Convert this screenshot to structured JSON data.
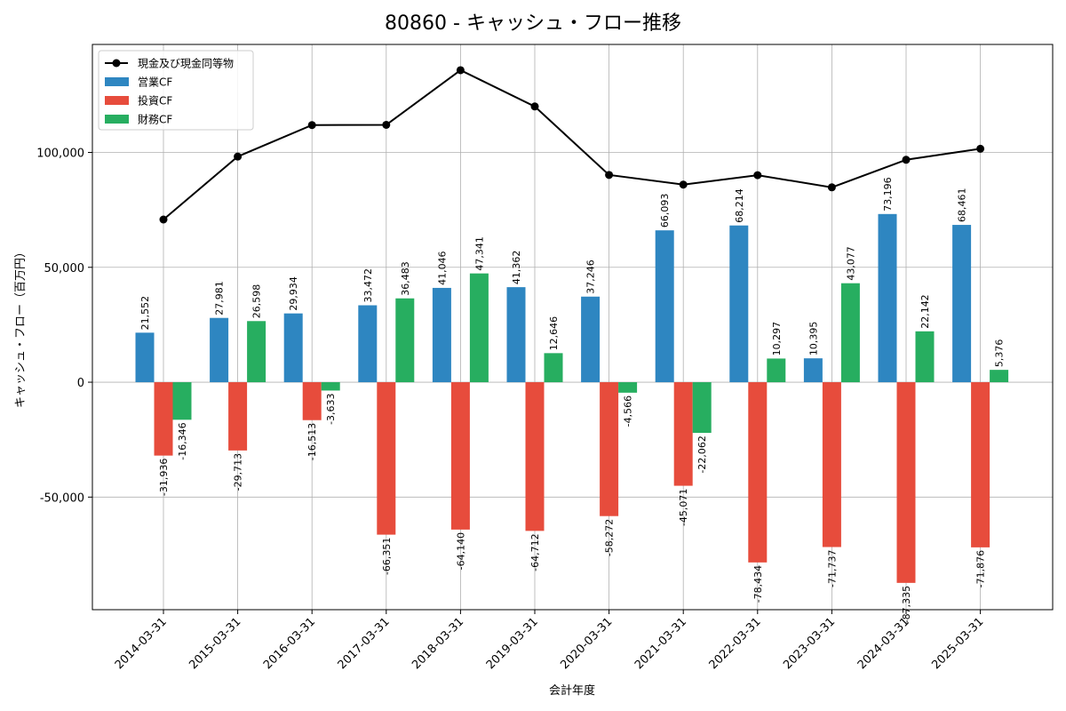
{
  "chart_data": {
    "type": "bar",
    "title": "80860 - キャッシュ・フロー推移",
    "xlabel": "会計年度",
    "ylabel": "キャッシュ・フロー（百万円）",
    "ylim": [
      -99000,
      147000
    ],
    "yticks": [
      -50000,
      0,
      50000,
      100000
    ],
    "ytick_labels": [
      "-50,000",
      "0",
      "50,000",
      "100,000"
    ],
    "grid": true,
    "legend_position": "top-left",
    "categories": [
      "2014-03-31",
      "2015-03-31",
      "2016-03-31",
      "2017-03-31",
      "2018-03-31",
      "2019-03-31",
      "2020-03-31",
      "2021-03-31",
      "2022-03-31",
      "2023-03-31",
      "2024-03-31",
      "2025-03-31"
    ],
    "series": [
      {
        "name": "営業CF",
        "kind": "bar",
        "color": "#2e86c1",
        "values": [
          21552,
          27981,
          29934,
          33472,
          41046,
          41362,
          37246,
          66093,
          68214,
          10395,
          73196,
          68461
        ],
        "labels": [
          "21,552",
          "27,981",
          "29,934",
          "33,472",
          "41,046",
          "41,362",
          "37,246",
          "66,093",
          "68,214",
          "10,395",
          "73,196",
          "68,461"
        ]
      },
      {
        "name": "投資CF",
        "kind": "bar",
        "color": "#e74c3c",
        "values": [
          -31936,
          -29713,
          -16513,
          -66351,
          -64140,
          -64712,
          -58272,
          -45071,
          -78434,
          -71737,
          -87335,
          -71876
        ],
        "labels": [
          "-31,936",
          "-29,713",
          "-16,513",
          "-66,351",
          "-64,140",
          "-64,712",
          "-58,272",
          "-45,071",
          "-78,434",
          "-71,737",
          "-87,335",
          "-71,876"
        ]
      },
      {
        "name": "財務CF",
        "kind": "bar",
        "color": "#27ae60",
        "values": [
          -16346,
          26598,
          -3633,
          36483,
          47341,
          12646,
          -4566,
          -22062,
          10297,
          43077,
          22142,
          5376
        ],
        "labels": [
          "-16,346",
          "26,598",
          "-3,633",
          "36,483",
          "47,341",
          "12,646",
          "-4,566",
          "-22,062",
          "10,297",
          "43,077",
          "22,142",
          "5,376"
        ]
      },
      {
        "name": "現金及び現金同等物",
        "kind": "line",
        "color": "#000000",
        "values": [
          70800,
          98200,
          111900,
          112000,
          135800,
          120000,
          90200,
          86000,
          90100,
          84800,
          96800,
          101600
        ]
      }
    ]
  }
}
